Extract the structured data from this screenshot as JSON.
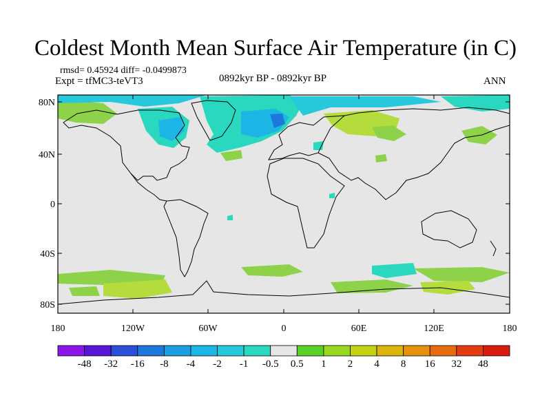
{
  "title": "Coldest Month Mean Surface Air Temperature (in C)",
  "stats": "rmsd= 0.45924 diff= -0.0499873",
  "experiment": "Expt = tfMC3-teVT3",
  "period": "0892kyr BP - 0892kyr BP",
  "season": "ANN",
  "lat_labels": [
    "80N",
    "40N",
    "0",
    "40S",
    "80S"
  ],
  "lon_labels": [
    "180",
    "120W",
    "60W",
    "0",
    "60E",
    "120E",
    "180"
  ],
  "colorbar": {
    "labels": [
      "-48",
      "-32",
      "-16",
      "-8",
      "-4",
      "-2",
      "-1",
      "-0.5",
      "0.5",
      "1",
      "2",
      "4",
      "8",
      "16",
      "32",
      "48"
    ],
    "colors": [
      "#8a16e8",
      "#5a16d8",
      "#2a4fd8",
      "#1e78dc",
      "#1c9ee0",
      "#1cb6e6",
      "#26c8dc",
      "#2ad8c0",
      "#e6e6e6",
      "#58d226",
      "#98d820",
      "#c4d214",
      "#dcb40c",
      "#e6900c",
      "#e66a10",
      "#e23c10",
      "#d81c10"
    ]
  },
  "map_colors": {
    "ocean": "#e6e6e6",
    "warm_weak": "#8ed24a",
    "warm_mid": "#b4dc3c",
    "cool_weak": "#2ad8c0",
    "cool_mid": "#26c8dc",
    "cool_strong": "#1cb6e6",
    "cool_core": "#1e78dc"
  }
}
